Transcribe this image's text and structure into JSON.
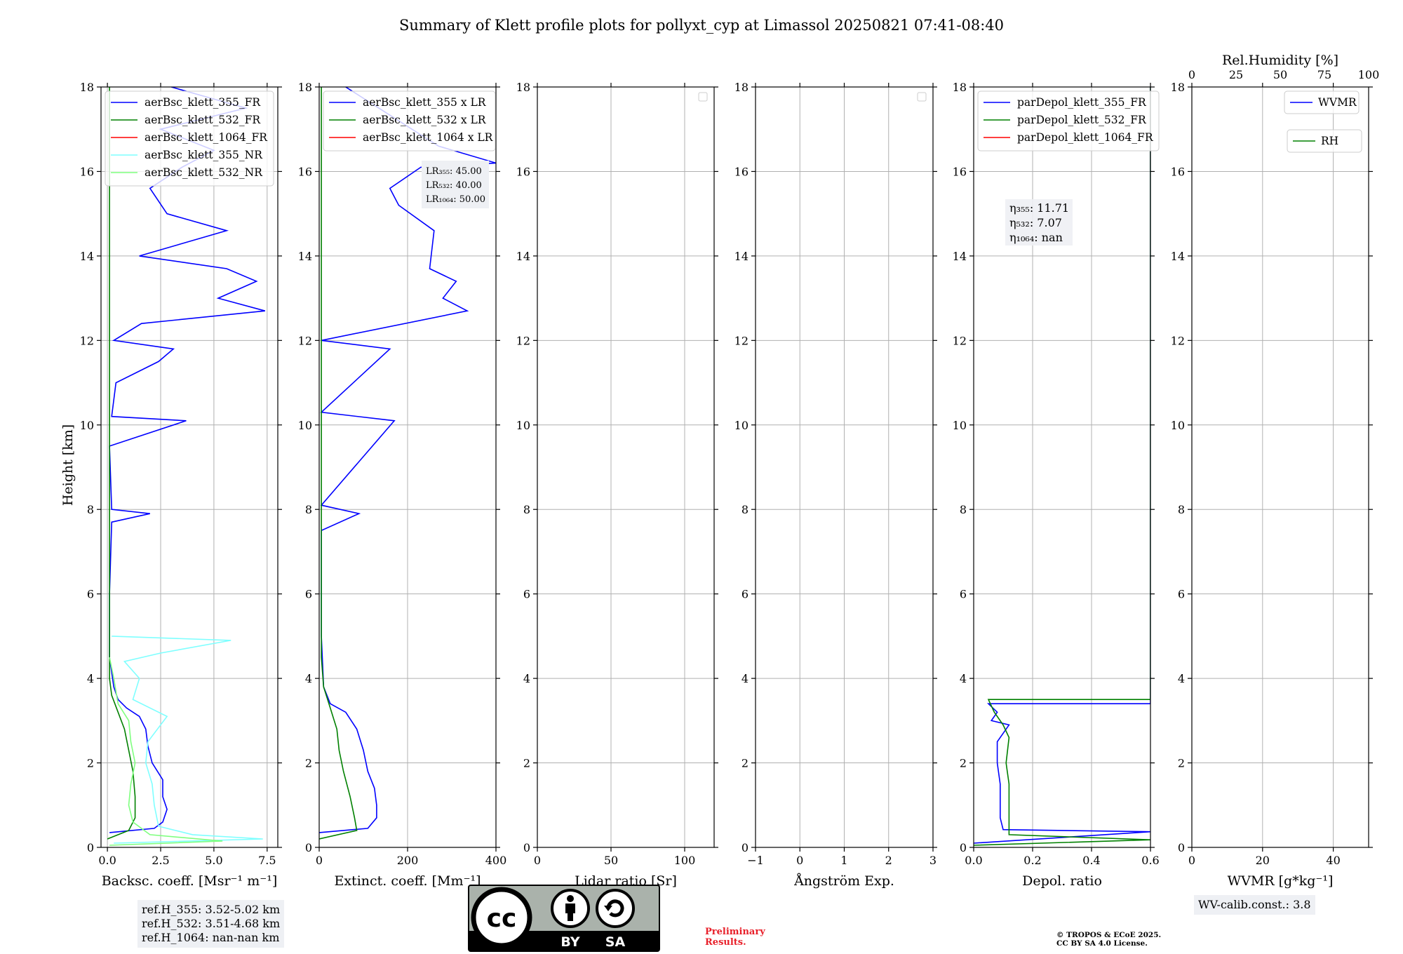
{
  "title": "Summary of Klett profile plots for pollyxt_cyp at Limassol 20250821 07:41-08:40",
  "shared_ylabel": "Height [km]",
  "ref_heights": [
    "ref.H_355: 3.52-5.02 km",
    "ref.H_532: 3.51-4.68 km",
    "ref.H_1064: nan-nan km"
  ],
  "wv_calib": "WV-calib.const.: 3.8",
  "preliminary": [
    "Preliminary",
    "Results."
  ],
  "copyright": [
    "© TROPOS & ECoE 2025.",
    "CC BY SA 4.0 License."
  ],
  "cc_badge": {
    "by": "BY",
    "sa": "SA"
  },
  "colors": {
    "blue": "#0000ff",
    "green": "#008000",
    "red": "#ff0000",
    "cyan": "#7fffff",
    "lightgreen": "#7fff7f",
    "grid": "#b0b0b0"
  },
  "chart_data": [
    {
      "type": "line",
      "xlabel": "Backsc. coeff. [Msr⁻¹ m⁻¹]",
      "ylabel": "Height [km]",
      "xlim": [
        -0.3,
        8
      ],
      "ylim": [
        0,
        18
      ],
      "xticks": [
        0.0,
        2.5,
        5.0,
        7.5
      ],
      "xticklabels": [
        "0.0",
        "2.5",
        "5.0",
        "7.5"
      ],
      "yticks": [
        0,
        2,
        4,
        6,
        8,
        10,
        12,
        14,
        16,
        18
      ],
      "grid": true,
      "legend": "top",
      "series": [
        {
          "name": "aerBsc_klett_355_FR",
          "color": "blue",
          "points": [
            [
              0.1,
              0.35
            ],
            [
              2.2,
              0.45
            ],
            [
              2.6,
              0.6
            ],
            [
              2.8,
              0.9
            ],
            [
              2.6,
              1.2
            ],
            [
              2.6,
              1.6
            ],
            [
              2.1,
              2.0
            ],
            [
              1.9,
              2.4
            ],
            [
              1.8,
              2.8
            ],
            [
              1.5,
              3.1
            ],
            [
              0.9,
              3.3
            ],
            [
              0.5,
              3.5
            ],
            [
              0.3,
              3.8
            ],
            [
              0.1,
              4.5
            ],
            [
              0.1,
              6
            ],
            [
              0.2,
              7.7
            ],
            [
              2.0,
              7.9
            ],
            [
              0.2,
              8.0
            ],
            [
              0.1,
              9.5
            ],
            [
              3.7,
              10.1
            ],
            [
              0.2,
              10.2
            ],
            [
              0.4,
              11.0
            ],
            [
              2.4,
              11.5
            ],
            [
              3.1,
              11.8
            ],
            [
              0.3,
              12.0
            ],
            [
              1.6,
              12.4
            ],
            [
              7.4,
              12.7
            ],
            [
              5.2,
              13.0
            ],
            [
              7.0,
              13.4
            ],
            [
              5.6,
              13.7
            ],
            [
              1.5,
              14.0
            ],
            [
              5.6,
              14.6
            ],
            [
              2.8,
              15.0
            ],
            [
              2.0,
              15.6
            ],
            [
              3.5,
              16.1
            ],
            [
              5.0,
              16.5
            ],
            [
              2.5,
              17.0
            ],
            [
              6.5,
              17.5
            ],
            [
              3.0,
              18.0
            ]
          ]
        },
        {
          "name": "aerBsc_klett_532_FR",
          "color": "green",
          "points": [
            [
              0.0,
              0.2
            ],
            [
              1.0,
              0.4
            ],
            [
              1.3,
              0.7
            ],
            [
              1.3,
              1.2
            ],
            [
              1.2,
              1.8
            ],
            [
              1.0,
              2.3
            ],
            [
              0.8,
              2.8
            ],
            [
              0.5,
              3.2
            ],
            [
              0.2,
              3.6
            ],
            [
              0.1,
              4.0
            ],
            [
              0.1,
              18.0
            ]
          ]
        },
        {
          "name": "aerBsc_klett_1064_FR",
          "color": "red",
          "points": []
        },
        {
          "name": "aerBsc_klett_355_NR",
          "color": "cyan",
          "points": [
            [
              0.3,
              0.1
            ],
            [
              7.3,
              0.2
            ],
            [
              4.0,
              0.3
            ],
            [
              2.4,
              0.5
            ],
            [
              2.2,
              1.0
            ],
            [
              2.1,
              1.5
            ],
            [
              1.8,
              2.0
            ],
            [
              1.9,
              2.5
            ],
            [
              2.8,
              3.1
            ],
            [
              1.2,
              3.5
            ],
            [
              1.5,
              4.0
            ],
            [
              0.8,
              4.4
            ],
            [
              2.5,
              4.6
            ],
            [
              5.8,
              4.9
            ],
            [
              0.2,
              5.0
            ]
          ]
        },
        {
          "name": "aerBsc_klett_532_NR",
          "color": "lightgreen",
          "points": [
            [
              0.1,
              0.05
            ],
            [
              5.4,
              0.15
            ],
            [
              2.0,
              0.3
            ],
            [
              1.2,
              0.6
            ],
            [
              1.0,
              1.0
            ],
            [
              1.1,
              1.5
            ],
            [
              1.3,
              2.0
            ],
            [
              1.1,
              2.5
            ],
            [
              1.0,
              3.0
            ],
            [
              0.5,
              3.4
            ],
            [
              0.3,
              4.0
            ],
            [
              0.1,
              4.5
            ]
          ]
        }
      ]
    },
    {
      "type": "line",
      "xlabel": "Extinct. coeff. [Mm⁻¹]",
      "ylabel": "Height [km]",
      "xlim": [
        0,
        400
      ],
      "ylim": [
        0,
        18
      ],
      "xticks": [
        0,
        200,
        400
      ],
      "xticklabels": [
        "0",
        "200",
        "400"
      ],
      "yticks": [
        0,
        2,
        4,
        6,
        8,
        10,
        12,
        14,
        16,
        18
      ],
      "grid": true,
      "legend": "top",
      "lidar_ratios": [
        "LR₃₅₅: 45.00",
        "LR₅₃₂: 40.00",
        "LR₁₀₆₄: 50.00"
      ],
      "series": [
        {
          "name": "aerBsc_klett_355 x LR",
          "color": "blue",
          "points": [
            [
              0,
              0.35
            ],
            [
              110,
              0.45
            ],
            [
              130,
              0.7
            ],
            [
              130,
              1.0
            ],
            [
              125,
              1.4
            ],
            [
              110,
              1.8
            ],
            [
              100,
              2.3
            ],
            [
              85,
              2.8
            ],
            [
              60,
              3.2
            ],
            [
              25,
              3.4
            ],
            [
              10,
              3.8
            ],
            [
              5,
              5
            ],
            [
              5,
              7.5
            ],
            [
              90,
              7.9
            ],
            [
              5,
              8.1
            ],
            [
              170,
              10.1
            ],
            [
              5,
              10.3
            ],
            [
              160,
              11.8
            ],
            [
              5,
              12.0
            ],
            [
              335,
              12.7
            ],
            [
              280,
              13.0
            ],
            [
              310,
              13.4
            ],
            [
              250,
              13.7
            ],
            [
              260,
              14.6
            ],
            [
              180,
              15.2
            ],
            [
              160,
              15.6
            ],
            [
              230,
              16.1
            ],
            [
              400,
              16.2
            ],
            [
              270,
              16.6
            ],
            [
              180,
              17.2
            ],
            [
              60,
              18
            ]
          ]
        },
        {
          "name": "aerBsc_klett_532 x LR",
          "color": "green",
          "points": [
            [
              0,
              0.2
            ],
            [
              85,
              0.4
            ],
            [
              80,
              0.7
            ],
            [
              70,
              1.2
            ],
            [
              55,
              1.8
            ],
            [
              45,
              2.3
            ],
            [
              40,
              2.8
            ],
            [
              25,
              3.3
            ],
            [
              10,
              3.8
            ],
            [
              5,
              4.5
            ],
            [
              5,
              18
            ]
          ]
        },
        {
          "name": "aerBsc_klett_1064 x LR",
          "color": "red",
          "points": []
        }
      ]
    },
    {
      "type": "line",
      "xlabel": "Lidar ratio [Sr]",
      "ylabel": "Height [km]",
      "xlim": [
        0,
        120
      ],
      "ylim": [
        0,
        18
      ],
      "xticks": [
        0,
        50,
        100
      ],
      "xticklabels": [
        "0",
        "50",
        "100"
      ],
      "yticks": [
        0,
        2,
        4,
        6,
        8,
        10,
        12,
        14,
        16,
        18
      ],
      "grid": true,
      "legend": "top-right",
      "series": []
    },
    {
      "type": "line",
      "xlabel": "Ångström Exp.",
      "ylabel": "Height [km]",
      "xlim": [
        -1,
        3
      ],
      "ylim": [
        0,
        18
      ],
      "xticks": [
        -1,
        0,
        1,
        2,
        3
      ],
      "xticklabels": [
        "−1",
        "0",
        "1",
        "2",
        "3"
      ],
      "yticks": [
        0,
        2,
        4,
        6,
        8,
        10,
        12,
        14,
        16,
        18
      ],
      "grid": true,
      "legend": "top-right",
      "series": []
    },
    {
      "type": "line",
      "xlabel": "Depol. ratio",
      "ylabel": "Height [km]",
      "xlim": [
        0.0,
        0.6
      ],
      "ylim": [
        0,
        18
      ],
      "xticks": [
        0.0,
        0.2,
        0.4,
        0.6
      ],
      "xticklabels": [
        "0.0",
        "0.2",
        "0.4",
        "0.6"
      ],
      "yticks": [
        0,
        2,
        4,
        6,
        8,
        10,
        12,
        14,
        16,
        18
      ],
      "grid": true,
      "legend": "top",
      "eta": [
        "η₃₅₅: 11.71",
        "η₅₃₂: 7.07",
        "η₁₀₆₄: nan"
      ],
      "series": [
        {
          "name": "parDepol_klett_355_FR",
          "color": "blue",
          "points": [
            [
              0.0,
              0.1
            ],
            [
              0.6,
              0.37
            ],
            [
              0.1,
              0.42
            ],
            [
              0.09,
              0.7
            ],
            [
              0.09,
              1.0
            ],
            [
              0.09,
              1.5
            ],
            [
              0.08,
              2.0
            ],
            [
              0.08,
              2.5
            ],
            [
              0.12,
              2.9
            ],
            [
              0.06,
              3.0
            ],
            [
              0.08,
              3.2
            ],
            [
              0.05,
              3.4
            ],
            [
              0.6,
              3.4
            ],
            [
              0.6,
              18
            ]
          ]
        },
        {
          "name": "parDepol_klett_532_FR",
          "color": "green",
          "points": [
            [
              0.0,
              0.05
            ],
            [
              0.6,
              0.18
            ],
            [
              0.12,
              0.3
            ],
            [
              0.12,
              0.8
            ],
            [
              0.12,
              1.5
            ],
            [
              0.11,
              2.0
            ],
            [
              0.12,
              2.6
            ],
            [
              0.1,
              2.9
            ],
            [
              0.07,
              3.2
            ],
            [
              0.05,
              3.5
            ],
            [
              0.6,
              3.5
            ],
            [
              0.6,
              18
            ]
          ]
        },
        {
          "name": "parDepol_klett_1064_FR",
          "color": "red",
          "points": []
        }
      ]
    },
    {
      "type": "line",
      "xlabel": "WVMR [g*kg⁻¹]",
      "ylabel": "Height [km]",
      "xlim": [
        0,
        50
      ],
      "ylim": [
        0,
        18
      ],
      "xticks": [
        0,
        20,
        40
      ],
      "xticklabels": [
        "0",
        "20",
        "40"
      ],
      "yticks": [
        0,
        2,
        4,
        6,
        8,
        10,
        12,
        14,
        16,
        18
      ],
      "grid": true,
      "top_xlabel": "Rel.Humidity [%]",
      "top_xlim": [
        0,
        100
      ],
      "top_xticks": [
        0,
        25,
        50,
        75,
        100
      ],
      "top_xticklabels": [
        "0",
        "25",
        "50",
        "75",
        "100"
      ],
      "legend": "top-right",
      "series": [
        {
          "name": "WVMR",
          "color": "blue",
          "points": []
        },
        {
          "name": "RH",
          "color": "green",
          "points": []
        }
      ]
    }
  ]
}
